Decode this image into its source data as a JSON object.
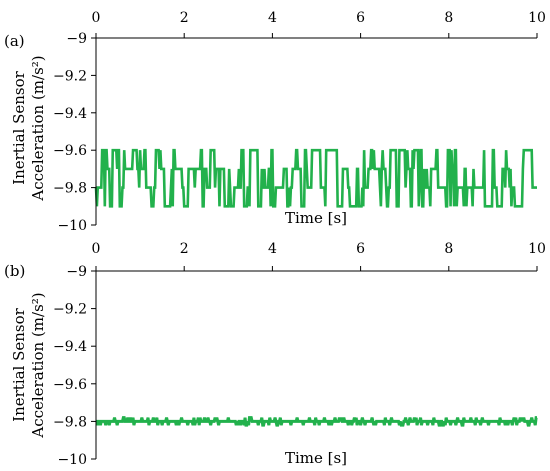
{
  "chart_data": [
    {
      "type": "line",
      "panel_label": "(a)",
      "xlabel": "Time [s]",
      "ylabel_lines": [
        "Inertial Sensor",
        "Acceleration (m/s²)"
      ],
      "xlim": [
        0,
        10
      ],
      "ylim": [
        -10,
        -9
      ],
      "x_ticks": [
        0,
        2,
        4,
        6,
        8,
        10
      ],
      "x_tick_labels": [
        "0",
        "2",
        "4",
        "6",
        "8",
        "10"
      ],
      "y_ticks": [
        -9,
        -9.2,
        -9.4,
        -9.6,
        -9.8,
        -10
      ],
      "y_tick_labels": [
        "−9",
        "−9.2",
        "−9.4",
        "−9.6",
        "−9.8",
        "−10"
      ],
      "x_axis_position": "top",
      "grid": false,
      "series": [
        {
          "color": "#22b14c",
          "values_min": -9.9,
          "values_max": -9.6,
          "levels": [
            -9.6,
            -9.7,
            -9.8,
            -9.9
          ],
          "x_range": [
            0,
            10
          ]
        }
      ]
    },
    {
      "type": "line",
      "panel_label": "(b)",
      "xlabel": "Time [s]",
      "ylabel_lines": [
        "Inertial Sensor",
        "Acceleration (m/s²)"
      ],
      "xlim": [
        0,
        10
      ],
      "ylim": [
        -10,
        -9
      ],
      "x_ticks": [
        0,
        2,
        4,
        6,
        8,
        10
      ],
      "x_tick_labels": [
        "0",
        "2",
        "4",
        "6",
        "8",
        "10"
      ],
      "y_ticks": [
        -9,
        -9.2,
        -9.4,
        -9.6,
        -9.8,
        -10
      ],
      "y_tick_labels": [
        "−9",
        "−9.2",
        "−9.4",
        "−9.6",
        "−9.8",
        "−10"
      ],
      "x_axis_position": "top",
      "grid": false,
      "series": [
        {
          "color": "#22b14c",
          "values_min": -9.82,
          "values_max": -9.78,
          "levels": [
            -9.78,
            -9.8,
            -9.82
          ],
          "x_range": [
            0,
            10
          ]
        }
      ]
    }
  ]
}
